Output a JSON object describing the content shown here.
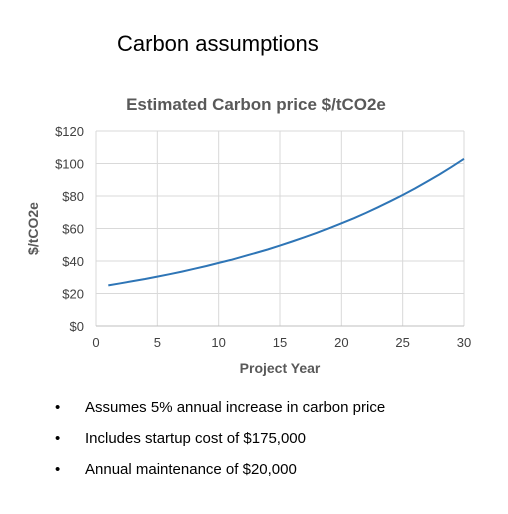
{
  "slide": {
    "title": "Carbon assumptions"
  },
  "bullets": [
    {
      "symbol": "•",
      "text": "Assumes 5% annual increase in carbon price"
    },
    {
      "symbol": "•",
      "text": "Includes startup cost of $175,000"
    },
    {
      "symbol": "•",
      "text": "Annual maintenance of $20,000"
    }
  ],
  "chart_data": {
    "type": "line",
    "title": "Estimated Carbon price $/tCO2e",
    "xlabel": "Project Year",
    "ylabel": "$/tCO2e",
    "xlim": [
      0,
      30
    ],
    "ylim": [
      0,
      120
    ],
    "x_ticks": [
      0,
      5,
      10,
      15,
      20,
      25,
      30
    ],
    "y_ticks": [
      0,
      20,
      40,
      60,
      80,
      100,
      120
    ],
    "y_tick_labels": [
      "$0",
      "$20",
      "$40",
      "$60",
      "$80",
      "$100",
      "$120"
    ],
    "grid": true,
    "legend": "none",
    "line_color": "#2E75B6",
    "series": [
      {
        "x": [
          1,
          2,
          3,
          4,
          5,
          6,
          7,
          8,
          9,
          10,
          11,
          12,
          13,
          14,
          15,
          16,
          17,
          18,
          19,
          20,
          21,
          22,
          23,
          24,
          25,
          26,
          27,
          28,
          29,
          30
        ],
        "values": [
          25.0,
          26.3,
          27.6,
          28.9,
          30.4,
          31.9,
          33.5,
          35.2,
          36.9,
          38.8,
          40.7,
          42.8,
          44.9,
          47.1,
          49.5,
          52.0,
          54.6,
          57.3,
          60.2,
          63.2,
          66.3,
          69.6,
          73.1,
          76.8,
          80.6,
          84.6,
          88.9,
          93.3,
          98.0,
          102.9
        ]
      }
    ]
  }
}
